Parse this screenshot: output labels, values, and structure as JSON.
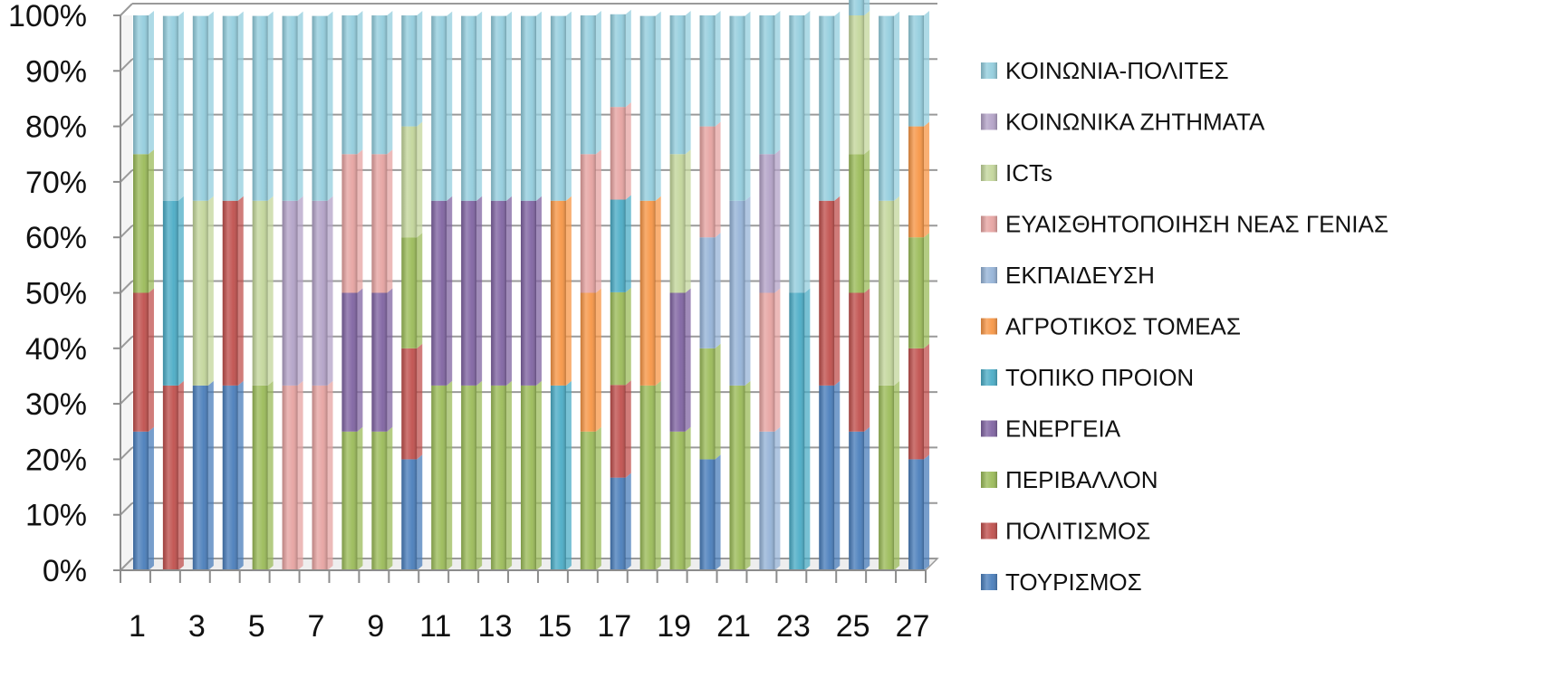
{
  "chart_data": {
    "type": "bar",
    "stacked": true,
    "normalized": true,
    "title": "",
    "xlabel": "",
    "ylabel": "",
    "ylim": [
      0,
      100
    ],
    "y_ticks": [
      "0%",
      "10%",
      "20%",
      "30%",
      "40%",
      "50%",
      "60%",
      "70%",
      "80%",
      "90%",
      "100%"
    ],
    "categories": [
      "1",
      "2",
      "3",
      "4",
      "5",
      "6",
      "7",
      "8",
      "9",
      "10",
      "11",
      "12",
      "13",
      "14",
      "15",
      "16",
      "17",
      "18",
      "19",
      "20",
      "21",
      "22",
      "23",
      "24",
      "25",
      "26",
      "27"
    ],
    "x_tick_labels": [
      "1",
      "3",
      "5",
      "7",
      "9",
      "11",
      "13",
      "15",
      "17",
      "19",
      "21",
      "23",
      "25",
      "27"
    ],
    "grid": "horizontal",
    "legend_position": "right",
    "series": [
      {
        "name": "ΤΟΥΡΙΣΜΟΣ",
        "color": "#4a7ebb",
        "values": [
          25,
          0,
          33.3,
          33.3,
          0,
          0,
          0,
          0,
          0,
          20,
          0,
          0,
          0,
          0,
          0,
          0,
          16.7,
          0,
          0,
          20,
          0,
          0,
          0,
          33.3,
          25,
          0,
          20
        ]
      },
      {
        "name": "ΠΟΛΙΤΙΣΜΟΣ",
        "color": "#c0504d",
        "values": [
          25,
          33.3,
          0,
          33.3,
          0,
          0,
          0,
          0,
          0,
          20,
          0,
          0,
          0,
          0,
          0,
          0,
          16.7,
          0,
          0,
          0,
          0,
          0,
          0,
          33.3,
          25,
          0,
          20
        ]
      },
      {
        "name": "ΠΕΡΙΒΑΛΛΟΝ",
        "color": "#9bbb59",
        "values": [
          25,
          0,
          0,
          0,
          33.3,
          0,
          0,
          25,
          25,
          20,
          33.3,
          33.3,
          33.3,
          33.3,
          0,
          25,
          16.7,
          33.3,
          25,
          20,
          33.3,
          0,
          0,
          0,
          25,
          33.3,
          20
        ]
      },
      {
        "name": "ΕΝΕΡΓΕΙΑ",
        "color": "#8064a2",
        "values": [
          0,
          0,
          0,
          0,
          0,
          0,
          0,
          25,
          25,
          0,
          33.3,
          33.3,
          33.3,
          33.3,
          0,
          0,
          0,
          0,
          25,
          0,
          0,
          0,
          0,
          0,
          0,
          0,
          0
        ]
      },
      {
        "name": "ΤΟΠΙΚΟ ΠΡΟΙΟΝ",
        "color": "#4bacc6",
        "values": [
          0,
          33.3,
          0,
          0,
          0,
          0,
          0,
          0,
          0,
          0,
          0,
          0,
          0,
          0,
          33.3,
          0,
          16.7,
          0,
          0,
          0,
          0,
          0,
          50,
          0,
          0,
          0,
          0
        ]
      },
      {
        "name": "ΑΓΡΟΤΙΚΟΣ ΤΟΜΕΑΣ",
        "color": "#f79646",
        "values": [
          0,
          0,
          0,
          0,
          0,
          0,
          0,
          0,
          0,
          0,
          0,
          0,
          0,
          0,
          33.3,
          25,
          0,
          33.3,
          0,
          0,
          0,
          0,
          0,
          0,
          0,
          0,
          20
        ]
      },
      {
        "name": "ΕΚΠΑΙΔΕΥΣΗ",
        "color": "#95b3d7",
        "values": [
          0,
          0,
          0,
          0,
          0,
          0,
          0,
          0,
          0,
          0,
          0,
          0,
          0,
          0,
          0,
          0,
          0,
          0,
          0,
          20,
          33.3,
          25,
          0,
          0,
          0,
          0,
          0
        ]
      },
      {
        "name": "ΕΥΑΙΣΘΗΤΟΠΟΙΗΣΗ ΝΕΑΣ ΓΕΝΙΑΣ",
        "color": "#e6a3a1",
        "values": [
          0,
          0,
          0,
          0,
          0,
          33.3,
          33.3,
          25,
          25,
          0,
          0,
          0,
          0,
          0,
          0,
          25,
          16.7,
          0,
          0,
          20,
          0,
          25,
          0,
          0,
          0,
          0,
          0
        ]
      },
      {
        "name": "ICTs",
        "color": "#c3d69b",
        "values": [
          0,
          0,
          33.3,
          0,
          33.3,
          0,
          0,
          0,
          0,
          20,
          0,
          0,
          0,
          0,
          0,
          0,
          0,
          0,
          25,
          0,
          0,
          0,
          0,
          0,
          25,
          33.3,
          0
        ]
      },
      {
        "name": "ΚΟΙΝΩΝΙΚΑ ΖΗΤΗΜΑΤΑ",
        "color": "#b3a2c7",
        "values": [
          0,
          0,
          0,
          0,
          0,
          33.3,
          33.3,
          0,
          0,
          0,
          0,
          0,
          0,
          0,
          0,
          0,
          0,
          0,
          0,
          0,
          0,
          25,
          0,
          0,
          0,
          0,
          0
        ]
      },
      {
        "name": "ΚΟΙΝΩΝΙΑ-ΠΟΛΙΤΕΣ",
        "color": "#93cddd",
        "values": [
          25,
          33.3,
          33.3,
          33.3,
          33.3,
          33.3,
          33.3,
          25,
          25,
          20,
          33.3,
          33.3,
          33.3,
          33.3,
          33.3,
          25,
          16.7,
          33.3,
          25,
          20,
          33.3,
          25,
          50,
          33.3,
          25,
          33.3,
          20
        ]
      }
    ]
  }
}
